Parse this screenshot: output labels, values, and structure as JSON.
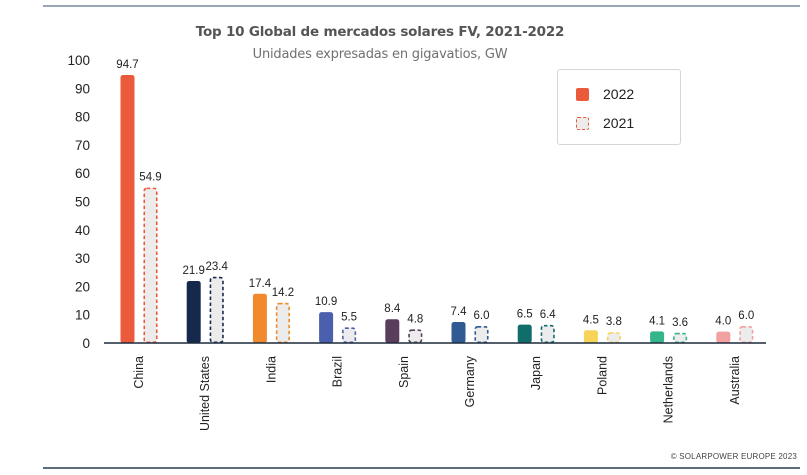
{
  "header": {
    "title": "Top 10 Global de mercados solares FV, 2021-2022",
    "subtitle": "Unidades expresadas en gigavatios, GW"
  },
  "legend": {
    "items": [
      {
        "label": "2022",
        "style": "solid",
        "color": "#ec5a3c"
      },
      {
        "label": "2021",
        "style": "dashed",
        "color": "#ec5a3c"
      }
    ]
  },
  "footer": {
    "credit": "© SOLARPOWER EUROPE 2023"
  },
  "chart_data": {
    "type": "bar",
    "title": "Top 10 Global de mercados solares FV, 2021-2022",
    "subtitle": "Unidades expresadas en gigavatios, GW",
    "xlabel": "",
    "ylabel": "",
    "ylim": [
      0,
      100
    ],
    "yticks": [
      0,
      10,
      20,
      30,
      40,
      50,
      60,
      70,
      80,
      90,
      100
    ],
    "grid": false,
    "legend_position": "top-right",
    "categories": [
      "China",
      "United States",
      "India",
      "Brazil",
      "Spain",
      "Germany",
      "Japan",
      "Poland",
      "Netherlands",
      "Australia"
    ],
    "category_colors": [
      "#ec5a3c",
      "#14294b",
      "#f08a2c",
      "#4a5fae",
      "#5a3d5c",
      "#2f5a93",
      "#0f6d6a",
      "#f7d35a",
      "#35b58a",
      "#f2a0a0"
    ],
    "series": [
      {
        "name": "2022",
        "style": "solid",
        "values": [
          94.7,
          21.9,
          17.4,
          10.9,
          8.4,
          7.4,
          6.5,
          4.5,
          4.1,
          4.0
        ],
        "labels": [
          "94.7",
          "21.9",
          "17.4",
          "10.9",
          "8.4",
          "7.4",
          "6.5",
          "4.5",
          "4.1",
          "4.0"
        ]
      },
      {
        "name": "2021",
        "style": "dashed",
        "values": [
          54.9,
          23.4,
          14.2,
          5.5,
          4.8,
          6.0,
          6.4,
          3.8,
          3.6,
          6.0
        ],
        "labels": [
          "54.9",
          "23.4",
          "14.2",
          "5.5",
          "4.8",
          "6.0",
          "6.4",
          "3.8",
          "3.6",
          "6.0"
        ]
      }
    ],
    "fill_2021": "#ececec"
  }
}
